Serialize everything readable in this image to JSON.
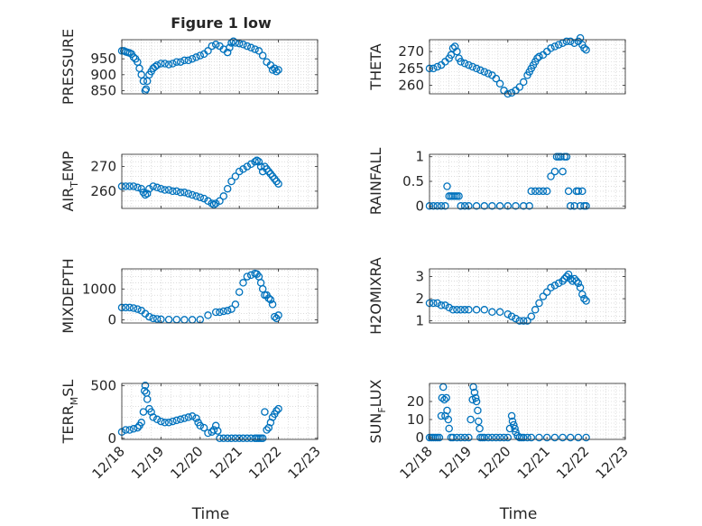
{
  "figure_title": "Figure 1 low",
  "colors": {
    "marker": "#0072BD",
    "axis": "#262626",
    "grid": "#c8c8c8",
    "bg": "#ffffff"
  },
  "chart_data": [
    {
      "id": "pressure",
      "type": "scatter",
      "ylabel": "PRESSURE",
      "xlabel": "",
      "xlim": [
        0,
        5
      ],
      "ylim": [
        840,
        1010
      ],
      "yticks": [
        850,
        900,
        950
      ],
      "xticks": [
        0,
        1,
        2,
        3,
        4,
        5
      ],
      "xticklabels": [],
      "grid": true,
      "x": [
        0.0,
        0.05,
        0.1,
        0.15,
        0.2,
        0.25,
        0.3,
        0.35,
        0.4,
        0.45,
        0.5,
        0.55,
        0.6,
        0.62,
        0.65,
        0.7,
        0.75,
        0.8,
        0.85,
        0.9,
        1.0,
        1.1,
        1.2,
        1.3,
        1.4,
        1.5,
        1.6,
        1.7,
        1.8,
        1.9,
        2.0,
        2.1,
        2.2,
        2.3,
        2.4,
        2.5,
        2.6,
        2.7,
        2.75,
        2.8,
        2.85,
        2.9,
        3.0,
        3.1,
        3.2,
        3.3,
        3.4,
        3.5,
        3.6,
        3.7,
        3.8,
        3.85,
        3.9,
        3.95,
        4.0
      ],
      "y": [
        975,
        975,
        972,
        970,
        968,
        965,
        955,
        950,
        940,
        920,
        900,
        880,
        850,
        855,
        880,
        900,
        910,
        920,
        925,
        930,
        935,
        935,
        932,
        935,
        940,
        940,
        945,
        945,
        950,
        955,
        960,
        965,
        975,
        990,
        995,
        990,
        980,
        970,
        985,
        1000,
        1005,
        1000,
        998,
        995,
        990,
        985,
        980,
        975,
        960,
        940,
        930,
        915,
        920,
        910,
        915
      ]
    },
    {
      "id": "theta",
      "type": "scatter",
      "ylabel": "THETA",
      "xlabel": "",
      "xlim": [
        0,
        5
      ],
      "ylim": [
        257.5,
        273.5
      ],
      "yticks": [
        260,
        265,
        270
      ],
      "xticks": [
        0,
        1,
        2,
        3,
        4,
        5
      ],
      "xticklabels": [],
      "grid": true,
      "x": [
        0.0,
        0.1,
        0.2,
        0.3,
        0.4,
        0.5,
        0.55,
        0.6,
        0.65,
        0.7,
        0.75,
        0.8,
        0.9,
        1.0,
        1.1,
        1.2,
        1.3,
        1.4,
        1.5,
        1.6,
        1.7,
        1.8,
        1.9,
        2.0,
        2.1,
        2.2,
        2.3,
        2.4,
        2.5,
        2.55,
        2.6,
        2.65,
        2.7,
        2.75,
        2.8,
        2.9,
        3.0,
        3.1,
        3.2,
        3.3,
        3.4,
        3.5,
        3.6,
        3.7,
        3.8,
        3.85,
        3.9,
        3.95,
        4.0
      ],
      "y": [
        265,
        265,
        265.5,
        266,
        267,
        268,
        269,
        271,
        271.5,
        270,
        268,
        267,
        266.5,
        266,
        265.5,
        265,
        264.5,
        264,
        263.5,
        263,
        262,
        260.5,
        258.5,
        257.5,
        257.8,
        258.5,
        259.5,
        261,
        263,
        264,
        265,
        266,
        267,
        268,
        268.5,
        269,
        270,
        271,
        271.5,
        272,
        272.5,
        273,
        273,
        272.5,
        273,
        274,
        272,
        271,
        270.5
      ]
    },
    {
      "id": "air_temp",
      "type": "scatter",
      "ylabel": "AIR_TEMP",
      "xlabel": "",
      "xlim": [
        0,
        5
      ],
      "ylim": [
        253,
        275
      ],
      "yticks": [
        260,
        270
      ],
      "xticks": [
        0,
        1,
        2,
        3,
        4,
        5
      ],
      "xticklabels": [],
      "grid": true,
      "x": [
        0.0,
        0.1,
        0.2,
        0.3,
        0.4,
        0.5,
        0.55,
        0.6,
        0.65,
        0.7,
        0.8,
        0.9,
        1.0,
        1.1,
        1.2,
        1.3,
        1.4,
        1.5,
        1.6,
        1.7,
        1.8,
        1.9,
        2.0,
        2.1,
        2.2,
        2.3,
        2.35,
        2.4,
        2.5,
        2.6,
        2.7,
        2.8,
        2.9,
        3.0,
        3.1,
        3.2,
        3.3,
        3.4,
        3.45,
        3.5,
        3.55,
        3.6,
        3.65,
        3.7,
        3.75,
        3.8,
        3.85,
        3.9,
        3.95,
        4.0
      ],
      "y": [
        262,
        262,
        262,
        262,
        261.5,
        261,
        259.5,
        258.5,
        259,
        261,
        262,
        261.5,
        261,
        260.5,
        260.5,
        260,
        260,
        259.5,
        259.5,
        259,
        258.5,
        258,
        257.5,
        257,
        256,
        255,
        254.5,
        255,
        256,
        258,
        261,
        264,
        266,
        268,
        269,
        270,
        271,
        272,
        272.5,
        272,
        270,
        268,
        270,
        269,
        268,
        267,
        266,
        265,
        264,
        263
      ]
    },
    {
      "id": "rainfall",
      "type": "scatter",
      "ylabel": "RAINFALL",
      "xlabel": "",
      "xlim": [
        0,
        5
      ],
      "ylim": [
        -0.05,
        1.05
      ],
      "yticks": [
        0,
        0.5,
        1
      ],
      "xticks": [
        0,
        1,
        2,
        3,
        4,
        5
      ],
      "xticklabels": [],
      "grid": true,
      "x": [
        0.0,
        0.1,
        0.2,
        0.3,
        0.4,
        0.45,
        0.5,
        0.55,
        0.6,
        0.65,
        0.7,
        0.75,
        0.8,
        0.9,
        1.0,
        1.2,
        1.4,
        1.6,
        1.8,
        2.0,
        2.2,
        2.4,
        2.55,
        2.6,
        2.7,
        2.8,
        2.9,
        3.0,
        3.1,
        3.2,
        3.25,
        3.3,
        3.35,
        3.4,
        3.45,
        3.5,
        3.55,
        3.6,
        3.7,
        3.75,
        3.8,
        3.85,
        3.9,
        3.95,
        4.0
      ],
      "y": [
        0,
        0,
        0,
        0,
        0,
        0.4,
        0.2,
        0.2,
        0.2,
        0.2,
        0.2,
        0.2,
        0,
        0,
        0,
        0,
        0,
        0,
        0,
        0,
        0,
        0,
        0,
        0.3,
        0.3,
        0.3,
        0.3,
        0.3,
        0.6,
        0.7,
        1,
        1,
        1,
        0.7,
        1,
        1,
        0.3,
        0,
        0,
        0.3,
        0.3,
        0,
        0.3,
        0,
        0
      ]
    },
    {
      "id": "mixdepth",
      "type": "scatter",
      "ylabel": "MIXDEPTH",
      "xlabel": "",
      "xlim": [
        0,
        5
      ],
      "ylim": [
        -100,
        1650
      ],
      "yticks": [
        0,
        1000
      ],
      "xticks": [
        0,
        1,
        2,
        3,
        4,
        5
      ],
      "xticklabels": [],
      "grid": true,
      "x": [
        0.0,
        0.1,
        0.2,
        0.3,
        0.4,
        0.5,
        0.6,
        0.7,
        0.8,
        0.9,
        1.0,
        1.2,
        1.4,
        1.6,
        1.8,
        2.0,
        2.2,
        2.4,
        2.5,
        2.6,
        2.7,
        2.8,
        2.9,
        3.0,
        3.1,
        3.2,
        3.3,
        3.4,
        3.45,
        3.5,
        3.55,
        3.6,
        3.65,
        3.7,
        3.75,
        3.8,
        3.85,
        3.9,
        3.95,
        4.0
      ],
      "y": [
        400,
        400,
        400,
        380,
        350,
        300,
        200,
        100,
        50,
        30,
        20,
        10,
        10,
        5,
        5,
        10,
        150,
        250,
        250,
        280,
        300,
        350,
        500,
        900,
        1200,
        1400,
        1450,
        1500,
        1480,
        1400,
        1200,
        1000,
        800,
        800,
        700,
        650,
        500,
        100,
        50,
        150
      ]
    },
    {
      "id": "h2omixra",
      "type": "scatter",
      "ylabel": "H2OMIXRA",
      "xlabel": "",
      "xlim": [
        0,
        5
      ],
      "ylim": [
        0.9,
        3.35
      ],
      "yticks": [
        1,
        2,
        3
      ],
      "xticks": [
        0,
        1,
        2,
        3,
        4,
        5
      ],
      "xticklabels": [],
      "grid": true,
      "x": [
        0.0,
        0.1,
        0.2,
        0.3,
        0.4,
        0.5,
        0.6,
        0.7,
        0.8,
        0.9,
        1.0,
        1.2,
        1.4,
        1.6,
        1.8,
        2.0,
        2.1,
        2.2,
        2.3,
        2.4,
        2.5,
        2.6,
        2.7,
        2.8,
        2.9,
        3.0,
        3.1,
        3.2,
        3.3,
        3.4,
        3.45,
        3.5,
        3.55,
        3.6,
        3.65,
        3.7,
        3.75,
        3.8,
        3.85,
        3.9,
        3.95,
        4.0
      ],
      "y": [
        1.8,
        1.8,
        1.8,
        1.7,
        1.7,
        1.6,
        1.5,
        1.5,
        1.5,
        1.5,
        1.5,
        1.5,
        1.5,
        1.4,
        1.4,
        1.3,
        1.2,
        1.1,
        1.0,
        1.0,
        1.0,
        1.2,
        1.5,
        1.8,
        2.1,
        2.3,
        2.5,
        2.6,
        2.7,
        2.8,
        2.9,
        3.0,
        3.1,
        2.9,
        2.8,
        2.9,
        2.8,
        2.7,
        2.5,
        2.2,
        2.0,
        1.9
      ]
    },
    {
      "id": "terr_msl",
      "type": "scatter",
      "ylabel": "TERR_MSL",
      "xlabel": "Time",
      "xlim": [
        0,
        5
      ],
      "ylim": [
        -10,
        520
      ],
      "yticks": [
        0,
        500
      ],
      "xticks": [
        0,
        1,
        2,
        3,
        4,
        5
      ],
      "xticklabels": [
        "12/18",
        "12/19",
        "12/20",
        "12/21",
        "12/22",
        "12/23"
      ],
      "grid": true,
      "x": [
        0.0,
        0.1,
        0.2,
        0.3,
        0.4,
        0.45,
        0.5,
        0.55,
        0.58,
        0.6,
        0.63,
        0.65,
        0.7,
        0.75,
        0.8,
        0.9,
        1.0,
        1.1,
        1.2,
        1.3,
        1.4,
        1.5,
        1.6,
        1.7,
        1.8,
        1.9,
        1.95,
        2.0,
        2.1,
        2.2,
        2.3,
        2.35,
        2.4,
        2.45,
        2.5,
        2.6,
        2.7,
        2.8,
        2.9,
        3.0,
        3.1,
        3.2,
        3.3,
        3.4,
        3.45,
        3.5,
        3.55,
        3.6,
        3.65,
        3.7,
        3.75,
        3.8,
        3.85,
        3.9,
        3.95,
        4.0
      ],
      "y": [
        60,
        80,
        80,
        90,
        100,
        120,
        150,
        250,
        450,
        500,
        430,
        370,
        280,
        250,
        200,
        180,
        160,
        150,
        150,
        160,
        170,
        180,
        190,
        200,
        210,
        190,
        150,
        120,
        100,
        50,
        60,
        80,
        120,
        70,
        0,
        0,
        0,
        0,
        0,
        0,
        0,
        0,
        0,
        0,
        0,
        0,
        0,
        0,
        250,
        80,
        100,
        150,
        200,
        230,
        260,
        280
      ]
    },
    {
      "id": "sun_flux",
      "type": "scatter",
      "ylabel": "SUN_FLUX",
      "xlabel": "Time",
      "xlim": [
        0,
        5
      ],
      "ylim": [
        -1,
        30
      ],
      "yticks": [
        0,
        10,
        20
      ],
      "xticks": [
        0,
        1,
        2,
        3,
        4,
        5
      ],
      "xticklabels": [
        "12/18",
        "12/19",
        "12/20",
        "12/21",
        "12/22",
        "12/23"
      ],
      "grid": true,
      "x": [
        0.0,
        0.05,
        0.1,
        0.15,
        0.2,
        0.25,
        0.3,
        0.32,
        0.35,
        0.38,
        0.4,
        0.43,
        0.45,
        0.48,
        0.5,
        0.55,
        0.6,
        0.7,
        0.8,
        0.9,
        1.0,
        1.05,
        1.1,
        1.12,
        1.15,
        1.18,
        1.2,
        1.23,
        1.25,
        1.28,
        1.3,
        1.35,
        1.4,
        1.5,
        1.6,
        1.7,
        1.8,
        1.9,
        2.0,
        2.05,
        2.1,
        2.12,
        2.15,
        2.18,
        2.2,
        2.25,
        2.3,
        2.35,
        2.4,
        2.5,
        2.6,
        2.8,
        3.0,
        3.2,
        3.4,
        3.6,
        3.8,
        4.0
      ],
      "y": [
        0,
        0,
        0,
        0,
        0,
        0,
        12,
        22,
        28,
        21,
        12,
        22,
        15,
        10,
        5,
        0,
        0,
        0,
        0,
        0,
        0,
        10,
        21,
        28,
        25,
        22,
        20,
        15,
        9,
        5,
        0,
        0,
        0,
        0,
        0,
        0,
        0,
        0,
        0,
        5,
        12,
        9,
        7,
        5,
        3,
        1,
        0,
        0,
        0,
        0,
        0,
        0,
        0,
        0,
        0,
        0,
        0,
        0
      ]
    }
  ]
}
